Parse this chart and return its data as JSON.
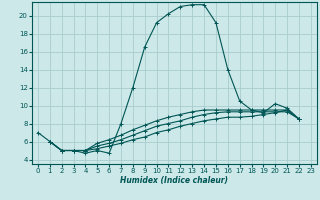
{
  "xlabel": "Humidex (Indice chaleur)",
  "ylabel": "",
  "xlim": [
    -0.5,
    23.5
  ],
  "ylim": [
    3.5,
    21.5
  ],
  "yticks": [
    4,
    6,
    8,
    10,
    12,
    14,
    16,
    18,
    20
  ],
  "xticks": [
    0,
    1,
    2,
    3,
    4,
    5,
    6,
    7,
    8,
    9,
    10,
    11,
    12,
    13,
    14,
    15,
    16,
    17,
    18,
    19,
    20,
    21,
    22,
    23
  ],
  "background_color": "#cce8e8",
  "grid_color": "#aacccc",
  "line_color": "#005555",
  "lines": [
    {
      "x": [
        0,
        1,
        2,
        3,
        4,
        5,
        6,
        7,
        8,
        9,
        10,
        11,
        12,
        13,
        14,
        15,
        16,
        17,
        18,
        19,
        20,
        21,
        22
      ],
      "y": [
        7.0,
        6.0,
        5.0,
        5.0,
        4.7,
        5.0,
        4.7,
        8.0,
        12.0,
        16.5,
        19.2,
        20.2,
        21.0,
        21.2,
        21.2,
        19.2,
        14.0,
        10.5,
        9.5,
        9.2,
        10.2,
        9.7,
        8.5
      ]
    },
    {
      "x": [
        1,
        2,
        3,
        4,
        5,
        6,
        7,
        8,
        9,
        10,
        11,
        12,
        13,
        14,
        15,
        16,
        17,
        18,
        19,
        20,
        21,
        22
      ],
      "y": [
        6.0,
        5.0,
        5.0,
        5.0,
        5.2,
        5.5,
        5.8,
        6.2,
        6.5,
        7.0,
        7.3,
        7.7,
        8.0,
        8.3,
        8.5,
        8.7,
        8.7,
        8.8,
        9.0,
        9.2,
        9.5,
        8.5
      ]
    },
    {
      "x": [
        1,
        2,
        3,
        4,
        5,
        6,
        7,
        8,
        9,
        10,
        11,
        12,
        13,
        14,
        15,
        16,
        17,
        18,
        19,
        20,
        21,
        22
      ],
      "y": [
        6.0,
        5.0,
        5.0,
        5.0,
        5.5,
        5.8,
        6.2,
        6.7,
        7.2,
        7.7,
        8.0,
        8.3,
        8.7,
        9.0,
        9.2,
        9.3,
        9.3,
        9.3,
        9.3,
        9.3,
        9.3,
        8.5
      ]
    },
    {
      "x": [
        1,
        2,
        3,
        4,
        5,
        6,
        7,
        8,
        9,
        10,
        11,
        12,
        13,
        14,
        15,
        16,
        17,
        18,
        19,
        20,
        21,
        22
      ],
      "y": [
        6.0,
        5.0,
        5.0,
        5.0,
        5.8,
        6.2,
        6.7,
        7.3,
        7.8,
        8.3,
        8.7,
        9.0,
        9.3,
        9.5,
        9.5,
        9.5,
        9.5,
        9.5,
        9.5,
        9.5,
        9.5,
        8.5
      ]
    }
  ]
}
